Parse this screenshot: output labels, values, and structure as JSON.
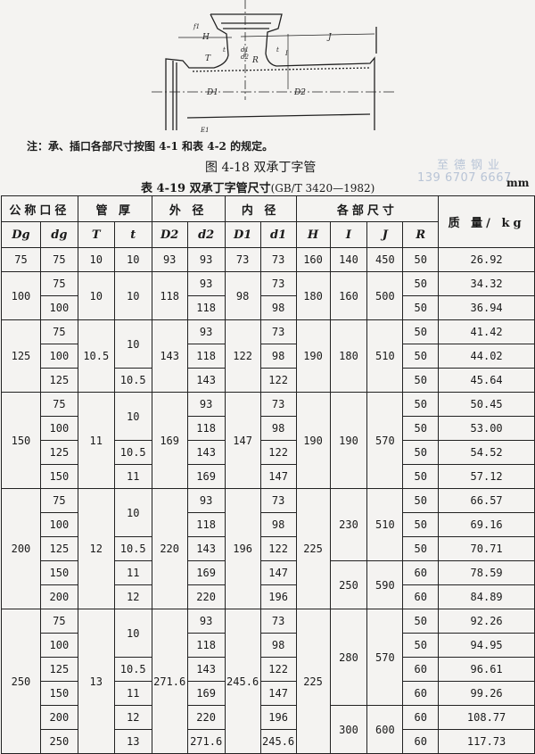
{
  "diagram": {
    "labels": [
      "H",
      "J",
      "d1",
      "d2",
      "t",
      "t",
      "T",
      "R",
      "D1",
      "D2",
      "f1",
      "I",
      "E1"
    ]
  },
  "note": "注：承、插口各部尺寸按图 4-1 和表 4-2 的规定。",
  "figure_caption": "图 4-18   双承丁字管",
  "table_caption": {
    "label": "表 4-19   双承丁字管尺寸",
    "standard": "(GB/T 3420—1982)",
    "unit": "mm"
  },
  "watermark": {
    "name": "至德钢业",
    "phone": "139 6707 6667"
  },
  "table": {
    "group_headers": [
      "公称口径",
      "管 厚",
      "外 径",
      "内 径",
      "各部尺寸",
      "质 量/ kg"
    ],
    "symbols": [
      "Dg",
      "dg",
      "T",
      "t",
      "D2",
      "d2",
      "D1",
      "d1",
      "H",
      "I",
      "J",
      "R"
    ],
    "rows": [
      [
        "75",
        "75",
        "10",
        "10",
        "93",
        "93",
        "73",
        "73",
        "160",
        "140",
        "450",
        "50",
        "26.92"
      ],
      [
        [
          "100",
          2
        ],
        "75",
        [
          "10",
          2
        ],
        [
          "10",
          2
        ],
        [
          "118",
          2
        ],
        "93",
        [
          "98",
          2
        ],
        "73",
        [
          "180",
          2
        ],
        [
          "160",
          2
        ],
        [
          "500",
          2
        ],
        "50",
        "34.32"
      ],
      [
        "100",
        "118",
        "98",
        "50",
        "36.94"
      ],
      [
        [
          "125",
          3
        ],
        "75",
        [
          "10.5",
          3
        ],
        [
          "10",
          2
        ],
        [
          "143",
          3
        ],
        "93",
        [
          "122",
          3
        ],
        "73",
        [
          "190",
          3
        ],
        [
          "180",
          3
        ],
        [
          "510",
          3
        ],
        "50",
        "41.42"
      ],
      [
        "100",
        "118",
        "98",
        "50",
        "44.02"
      ],
      [
        "125",
        "10.5",
        "143",
        "122",
        "50",
        "45.64"
      ],
      [
        [
          "150",
          4
        ],
        "75",
        [
          "11",
          4
        ],
        [
          "10",
          2
        ],
        [
          "169",
          4
        ],
        "93",
        [
          "147",
          4
        ],
        "73",
        [
          "190",
          4
        ],
        [
          "190",
          4
        ],
        [
          "570",
          4
        ],
        "50",
        "50.45"
      ],
      [
        "100",
        "118",
        "98",
        "50",
        "53.00"
      ],
      [
        "125",
        "10.5",
        "143",
        "122",
        "50",
        "54.52"
      ],
      [
        "150",
        "11",
        "169",
        "147",
        "50",
        "57.12"
      ],
      [
        [
          "200",
          5
        ],
        "75",
        [
          "12",
          5
        ],
        [
          "10",
          2
        ],
        [
          "220",
          5
        ],
        "93",
        [
          "196",
          5
        ],
        "73",
        [
          "225",
          5
        ],
        [
          "230",
          3
        ],
        [
          "510",
          3
        ],
        "50",
        "66.57"
      ],
      [
        "100",
        "118",
        "98",
        "50",
        "69.16"
      ],
      [
        "125",
        "10.5",
        "143",
        "122",
        "50",
        "70.71"
      ],
      [
        "150",
        "11",
        "169",
        "147",
        [
          "250",
          2
        ],
        [
          "590",
          2
        ],
        "60",
        "78.59"
      ],
      [
        "200",
        "12",
        "220",
        "196",
        "60",
        "84.89"
      ],
      [
        [
          "250",
          6
        ],
        "75",
        [
          "13",
          6
        ],
        [
          "10",
          2
        ],
        [
          "271.6",
          6
        ],
        "93",
        [
          "245.6",
          6
        ],
        "73",
        [
          "225",
          6
        ],
        [
          "280",
          4
        ],
        [
          "570",
          4
        ],
        "50",
        "92.26"
      ],
      [
        "100",
        "118",
        "98",
        "50",
        "94.95"
      ],
      [
        "125",
        "10.5",
        "143",
        "122",
        "60",
        "96.61"
      ],
      [
        "150",
        "11",
        "169",
        "147",
        "60",
        "99.26"
      ],
      [
        "200",
        "12",
        "220",
        "196",
        [
          "300",
          2
        ],
        [
          "600",
          2
        ],
        "60",
        "108.77"
      ],
      [
        "250",
        "13",
        "271.6",
        "245.6",
        "60",
        "117.73"
      ]
    ]
  }
}
